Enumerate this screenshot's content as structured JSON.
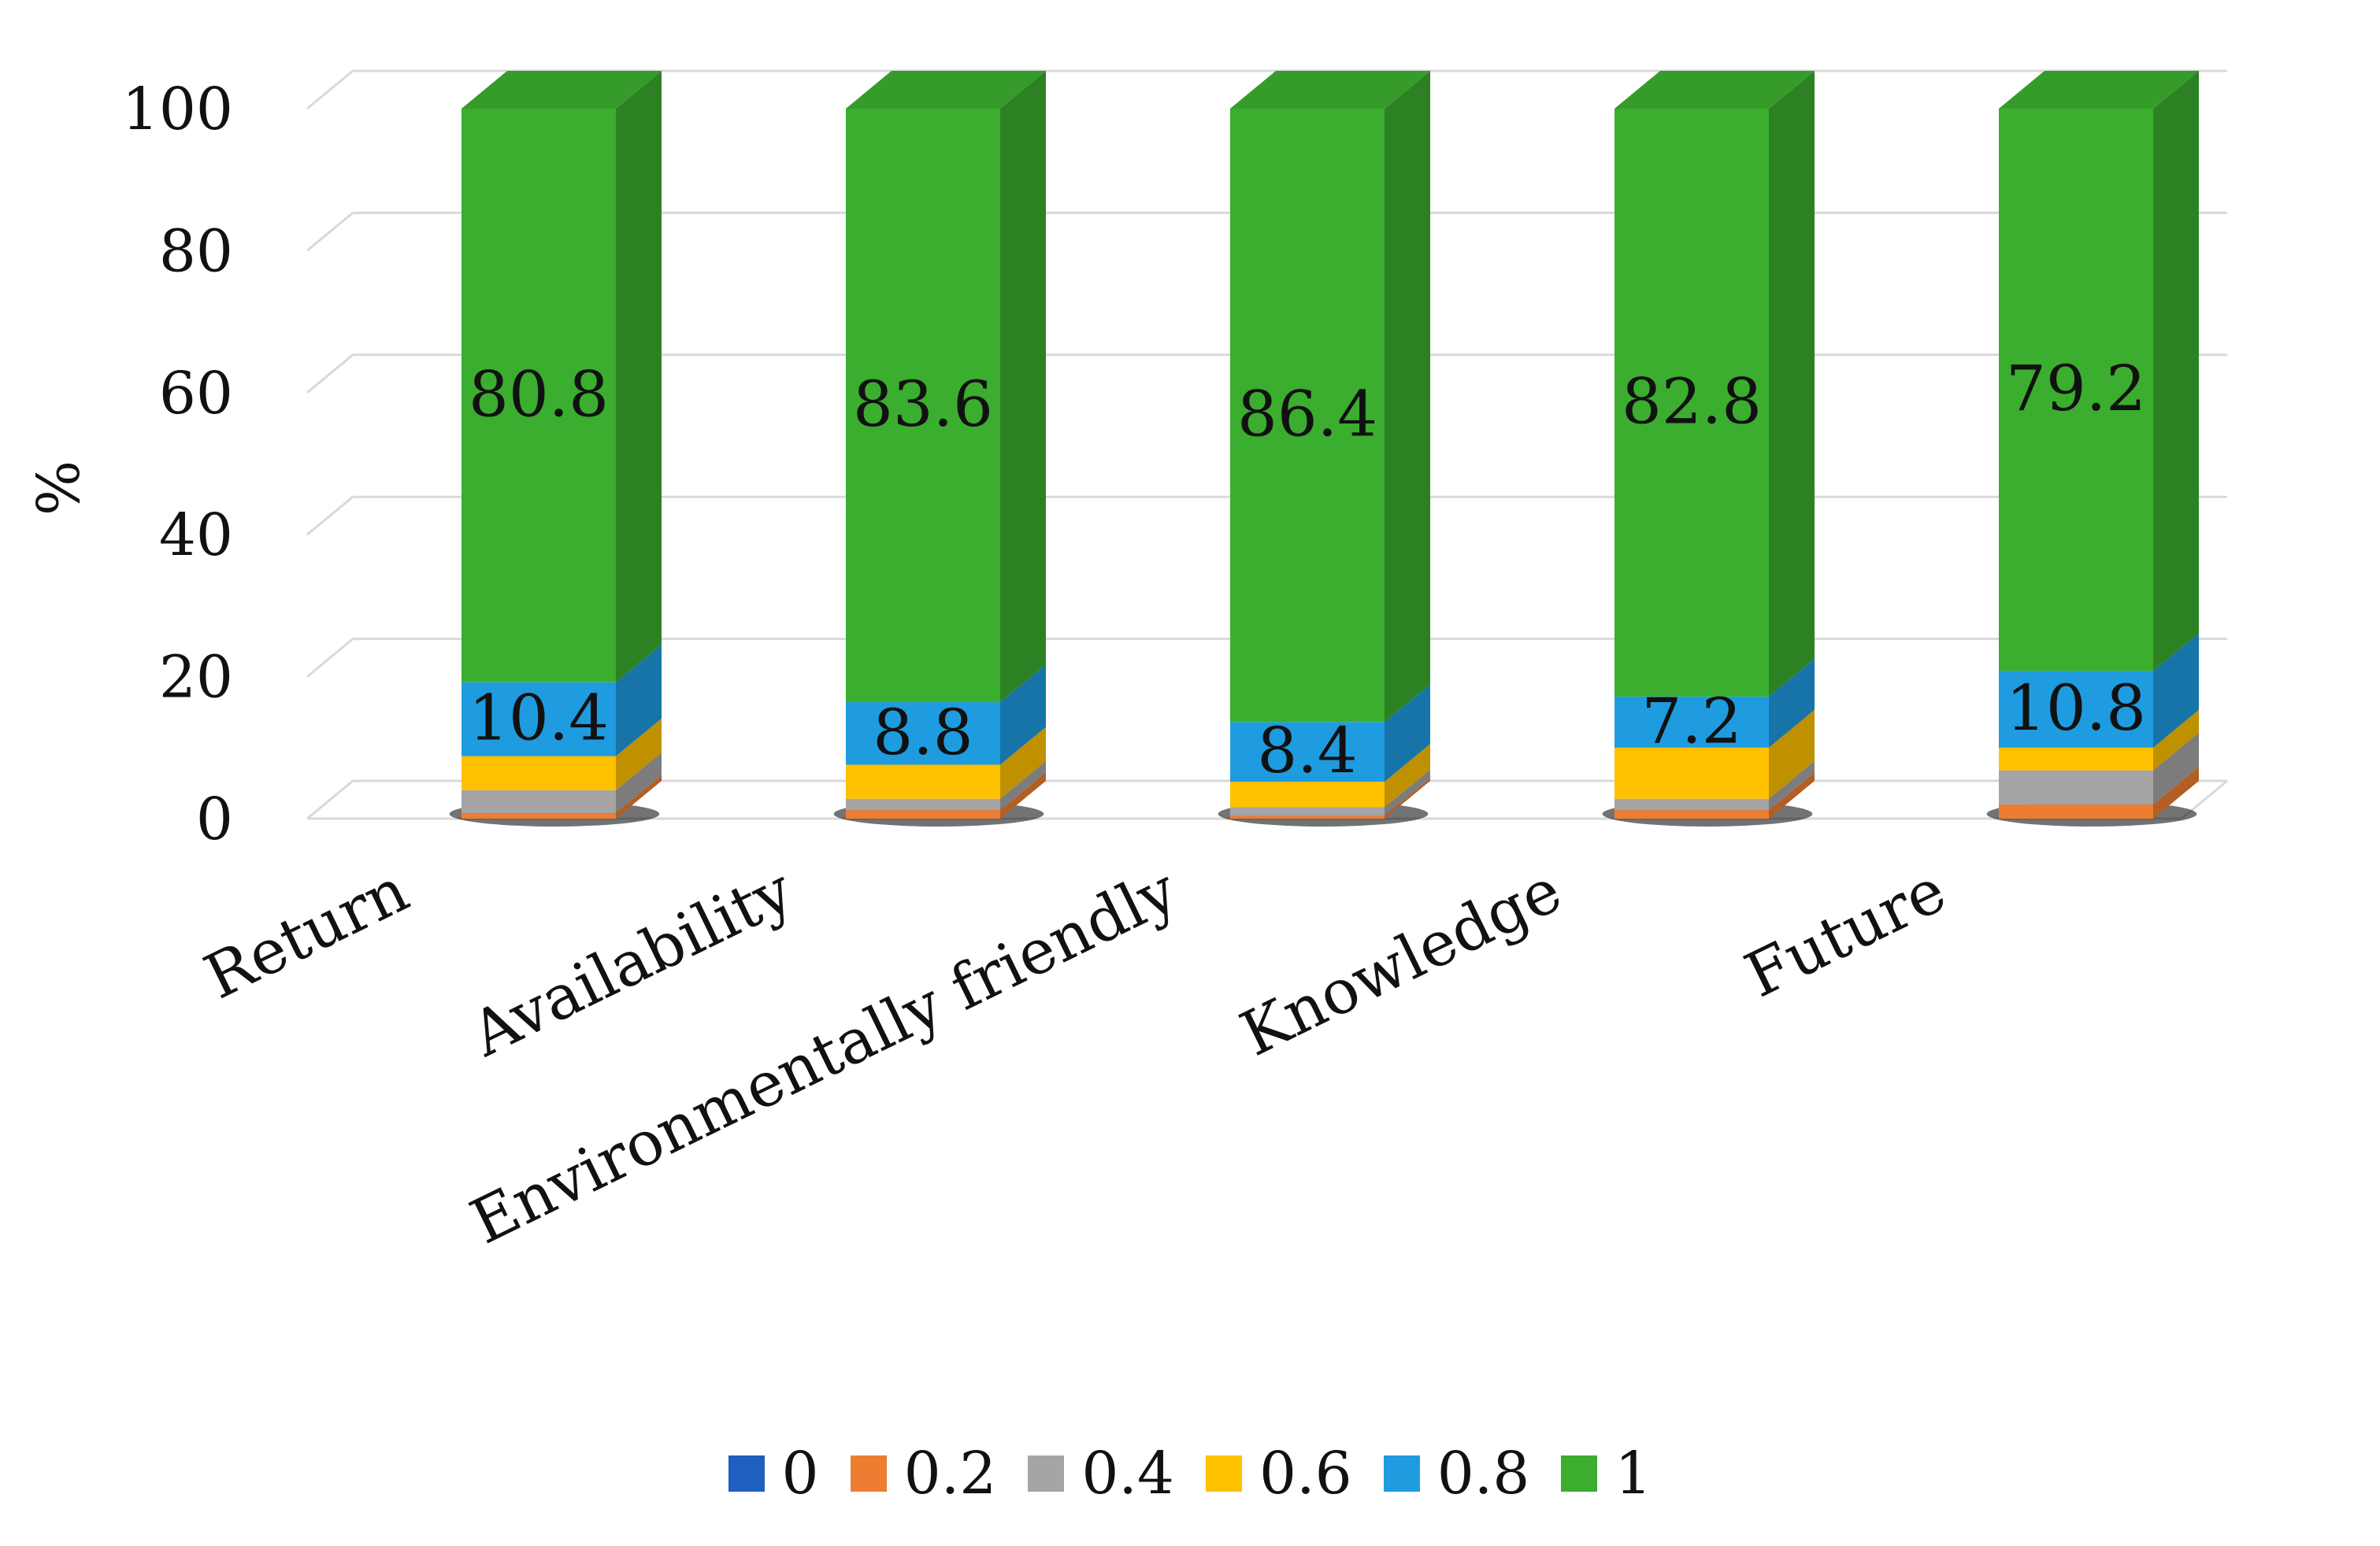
{
  "chart_data": {
    "type": "bar",
    "stacked": true,
    "three_d": true,
    "title": "",
    "xlabel": "",
    "ylabel": "%",
    "ylim": [
      0,
      100
    ],
    "yticks": [
      0,
      20,
      40,
      60,
      80,
      100
    ],
    "grid": true,
    "legend_position": "bottom",
    "categories": [
      "Return",
      "Availability",
      "Environmentally friendly",
      "Knowledge",
      "Future"
    ],
    "series": [
      {
        "name": "0",
        "color": "#1f5fbf",
        "values": [
          0,
          0,
          0,
          0,
          0
        ]
      },
      {
        "name": "0.2",
        "color": "#ed7d31",
        "values": [
          0.8,
          1.2,
          0.4,
          1.2,
          2.0
        ]
      },
      {
        "name": "0.4",
        "color": "#a5a5a5",
        "values": [
          3.2,
          1.6,
          1.2,
          1.6,
          4.8
        ]
      },
      {
        "name": "0.6",
        "color": "#ffc000",
        "values": [
          4.8,
          4.8,
          3.6,
          7.2,
          3.2
        ]
      },
      {
        "name": "0.8",
        "color": "#1f9be0",
        "values": [
          10.4,
          8.8,
          8.4,
          7.2,
          10.8
        ]
      },
      {
        "name": "1",
        "color": "#3bad2f",
        "values": [
          80.8,
          83.6,
          86.4,
          82.8,
          79.2
        ]
      }
    ],
    "data_labels": {
      "0.8": [
        "10.4",
        "8.8",
        "8.4",
        "7.2",
        "10.8"
      ],
      "1": [
        "80.8",
        "83.6",
        "86.4",
        "82.8",
        "79.2"
      ]
    }
  }
}
